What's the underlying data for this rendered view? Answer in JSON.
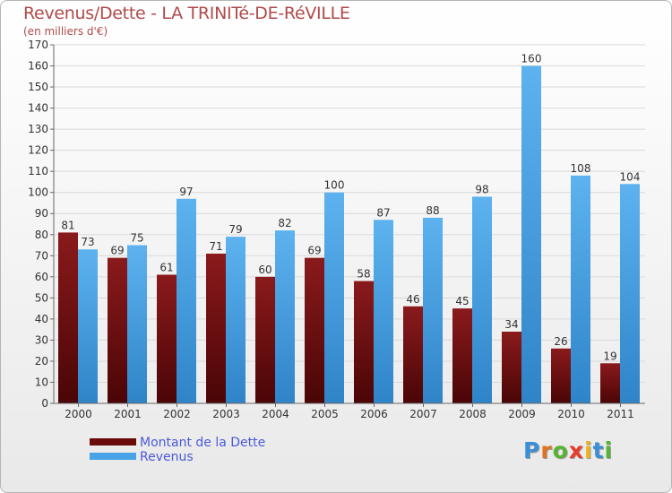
{
  "page": {
    "title": "Revenus/Dette - LA TRINITé-DE-RéVILLE",
    "subtitle": "(en milliers d'€)",
    "logo_text": "Proxiti"
  },
  "colors": {
    "dette": "#7a0f10",
    "revenus": "#4aa3e6",
    "axis": "#666666",
    "grid": "#d9d9d9"
  },
  "chart_data": {
    "type": "bar",
    "title": "Revenus/Dette - LA TRINITé-DE-RéVILLE",
    "ylabel": "(en milliers d'€)",
    "categories": [
      "2000",
      "2001",
      "2002",
      "2003",
      "2004",
      "2005",
      "2006",
      "2007",
      "2008",
      "2009",
      "2010",
      "2011"
    ],
    "series": [
      {
        "name": "Montant de la Dette",
        "values": [
          81,
          69,
          61,
          71,
          60,
          69,
          58,
          46,
          45,
          34,
          26,
          19
        ]
      },
      {
        "name": "Revenus",
        "values": [
          73,
          75,
          97,
          79,
          82,
          100,
          87,
          88,
          98,
          160,
          108,
          104
        ]
      }
    ],
    "ylim": [
      0,
      170
    ],
    "yticks": [
      0,
      10,
      20,
      30,
      40,
      50,
      60,
      70,
      80,
      90,
      100,
      110,
      120,
      130,
      140,
      150,
      160,
      170
    ],
    "grid": true,
    "legend_position": "bottom-left"
  }
}
